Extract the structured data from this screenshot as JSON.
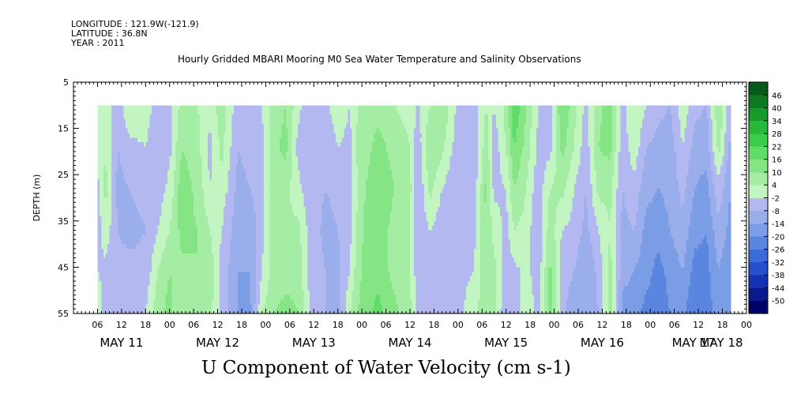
{
  "header": {
    "longitude": "LONGITUDE : 121.9W(-121.9)",
    "latitude": "LATITUDE : 36.8N",
    "year": "YEAR : 2011"
  },
  "chart_data": {
    "type": "heatmap",
    "title": "Hourly Gridded MBARI Mooring M0 Sea Water Temperature and Salinity Observations",
    "xlabel": "U Component of Water Velocity (cm s-1)",
    "ylabel": "DEPTH (m)",
    "ylim": [
      55,
      5
    ],
    "y_ticks": [
      5,
      15,
      25,
      35,
      45,
      55
    ],
    "data_depth_range": [
      10,
      55
    ],
    "x_hour_range": [
      0,
      168
    ],
    "data_hour_range": [
      6,
      164
    ],
    "hour_tick_labels": [
      "06",
      "12",
      "18",
      "00",
      "06",
      "12",
      "18",
      "00",
      "06",
      "12",
      "18",
      "00",
      "06",
      "12",
      "18",
      "00",
      "06",
      "12",
      "18",
      "00",
      "06",
      "12",
      "18",
      "00",
      "06",
      "12",
      "18",
      "00",
      "06",
      "12",
      "18",
      "00"
    ],
    "day_labels": [
      "MAY 11",
      "MAY 12",
      "MAY 13",
      "MAY 14",
      "MAY 15",
      "MAY 16",
      "MAY 17",
      "MAY 18"
    ],
    "colorbar": {
      "levels": [
        -50,
        -44,
        -38,
        -32,
        -26,
        -20,
        -14,
        -8,
        -2,
        4,
        10,
        16,
        22,
        28,
        34,
        40,
        46
      ],
      "colors": [
        "#000066",
        "#0a1a8c",
        "#1433b3",
        "#2450cc",
        "#3a6bd9",
        "#5a86e0",
        "#7a9de6",
        "#9aaeeb",
        "#b3b9f0",
        "#c2f5c2",
        "#a5eca5",
        "#85e585",
        "#5fdc6a",
        "#3ccc4c",
        "#25b83a",
        "#169a2c",
        "#0d7a20",
        "#05591a"
      ]
    },
    "profiles": [
      {
        "hour": 6,
        "v": [
          4,
          0,
          -4,
          -6,
          -2,
          4
        ]
      },
      {
        "hour": 8,
        "v": [
          2,
          4,
          6,
          2,
          -4,
          -6
        ]
      },
      {
        "hour": 11,
        "v": [
          -6,
          -8,
          -10,
          -8,
          -6,
          -4
        ]
      },
      {
        "hour": 14,
        "v": [
          4,
          -4,
          -8,
          -10,
          -6,
          -4
        ]
      },
      {
        "hour": 18,
        "v": [
          2,
          -2,
          -6,
          -8,
          -6,
          -2
        ]
      },
      {
        "hour": 21,
        "v": [
          -6,
          -8,
          -6,
          -2,
          4,
          8
        ]
      },
      {
        "hour": 24,
        "v": [
          -4,
          -4,
          0,
          4,
          10,
          12
        ]
      },
      {
        "hour": 27,
        "v": [
          6,
          10,
          14,
          12,
          8,
          4
        ]
      },
      {
        "hour": 31,
        "v": [
          4,
          6,
          8,
          10,
          10,
          6
        ]
      },
      {
        "hour": 34,
        "v": [
          0,
          -4,
          -2,
          4,
          8,
          6
        ]
      },
      {
        "hour": 37,
        "v": [
          8,
          6,
          2,
          -2,
          -4,
          -4
        ]
      },
      {
        "hour": 41,
        "v": [
          -6,
          -8,
          -10,
          -12,
          -14,
          -14
        ]
      },
      {
        "hour": 44,
        "v": [
          -4,
          -6,
          -8,
          -12,
          -14,
          -16
        ]
      },
      {
        "hour": 47,
        "v": [
          -2,
          -4,
          -6,
          -4,
          -2,
          4
        ]
      },
      {
        "hour": 50,
        "v": [
          6,
          8,
          10,
          8,
          6,
          10
        ]
      },
      {
        "hour": 53,
        "v": [
          10,
          12,
          6,
          4,
          8,
          12
        ]
      },
      {
        "hour": 56,
        "v": [
          0,
          -4,
          0,
          6,
          8,
          10
        ]
      },
      {
        "hour": 59,
        "v": [
          -6,
          -8,
          -6,
          -4,
          -4,
          -2
        ]
      },
      {
        "hour": 63,
        "v": [
          -4,
          -6,
          -8,
          -10,
          -8,
          -8
        ]
      },
      {
        "hour": 66,
        "v": [
          2,
          -2,
          -6,
          -8,
          -10,
          -10
        ]
      },
      {
        "hour": 69,
        "v": [
          -2,
          -4,
          -4,
          -4,
          -2,
          4
        ]
      },
      {
        "hour": 71,
        "v": [
          4,
          6,
          4,
          6,
          8,
          10
        ]
      },
      {
        "hour": 73,
        "v": [
          6,
          8,
          10,
          12,
          12,
          14
        ]
      },
      {
        "hour": 76,
        "v": [
          8,
          12,
          16,
          14,
          14,
          18
        ]
      },
      {
        "hour": 80,
        "v": [
          4,
          8,
          10,
          8,
          8,
          12
        ]
      },
      {
        "hour": 84,
        "v": [
          2,
          4,
          6,
          4,
          4,
          6
        ]
      },
      {
        "hour": 86,
        "v": [
          -4,
          -6,
          -8,
          -6,
          -6,
          -4
        ]
      },
      {
        "hour": 89,
        "v": [
          4,
          10,
          6,
          -2,
          -6,
          -4
        ]
      },
      {
        "hour": 92,
        "v": [
          10,
          6,
          -2,
          -6,
          -6,
          -4
        ]
      },
      {
        "hour": 96,
        "v": [
          -4,
          -6,
          -8,
          -6,
          -4,
          -4
        ]
      },
      {
        "hour": 100,
        "v": [
          -6,
          -8,
          -6,
          -4,
          -2,
          2
        ]
      },
      {
        "hour": 103,
        "v": [
          4,
          8,
          12,
          10,
          10,
          8
        ]
      },
      {
        "hour": 105,
        "v": [
          -2,
          -6,
          -4,
          2,
          6,
          6
        ]
      },
      {
        "hour": 108,
        "v": [
          6,
          4,
          -2,
          -4,
          -6,
          -8
        ]
      },
      {
        "hour": 110,
        "v": [
          22,
          16,
          10,
          4,
          -4,
          -8
        ]
      },
      {
        "hour": 113,
        "v": [
          10,
          8,
          4,
          2,
          0,
          4
        ]
      },
      {
        "hour": 116,
        "v": [
          -2,
          -4,
          -6,
          -8,
          -6,
          -4
        ]
      },
      {
        "hour": 119,
        "v": [
          -6,
          -4,
          4,
          8,
          12,
          14
        ]
      },
      {
        "hour": 122,
        "v": [
          16,
          12,
          6,
          -2,
          -6,
          -6
        ]
      },
      {
        "hour": 125,
        "v": [
          6,
          4,
          -2,
          -4,
          -8,
          -12
        ]
      },
      {
        "hour": 128,
        "v": [
          -4,
          -6,
          -8,
          -10,
          -14,
          -14
        ]
      },
      {
        "hour": 131,
        "v": [
          8,
          10,
          6,
          -2,
          -6,
          -8
        ]
      },
      {
        "hour": 134,
        "v": [
          14,
          12,
          6,
          4,
          6,
          8
        ]
      },
      {
        "hour": 137,
        "v": [
          -4,
          -6,
          -8,
          -10,
          -12,
          -16
        ]
      },
      {
        "hour": 140,
        "v": [
          4,
          2,
          -4,
          -8,
          -14,
          -18
        ]
      },
      {
        "hour": 143,
        "v": [
          -2,
          -8,
          -12,
          -16,
          -18,
          -22
        ]
      },
      {
        "hour": 146,
        "v": [
          -6,
          -10,
          -14,
          -18,
          -22,
          -24
        ]
      },
      {
        "hour": 149,
        "v": [
          -8,
          -12,
          -12,
          -14,
          -18,
          -20
        ]
      },
      {
        "hour": 152,
        "v": [
          2,
          -2,
          -6,
          -10,
          -14,
          -18
        ]
      },
      {
        "hour": 155,
        "v": [
          -6,
          -10,
          -14,
          -18,
          -22,
          -26
        ]
      },
      {
        "hour": 158,
        "v": [
          -8,
          -12,
          -16,
          -20,
          -22,
          -24
        ]
      },
      {
        "hour": 161,
        "v": [
          10,
          6,
          -4,
          -10,
          -14,
          -16
        ]
      },
      {
        "hour": 164,
        "v": [
          -6,
          -10,
          -14,
          -16,
          -18,
          -20
        ]
      }
    ]
  }
}
